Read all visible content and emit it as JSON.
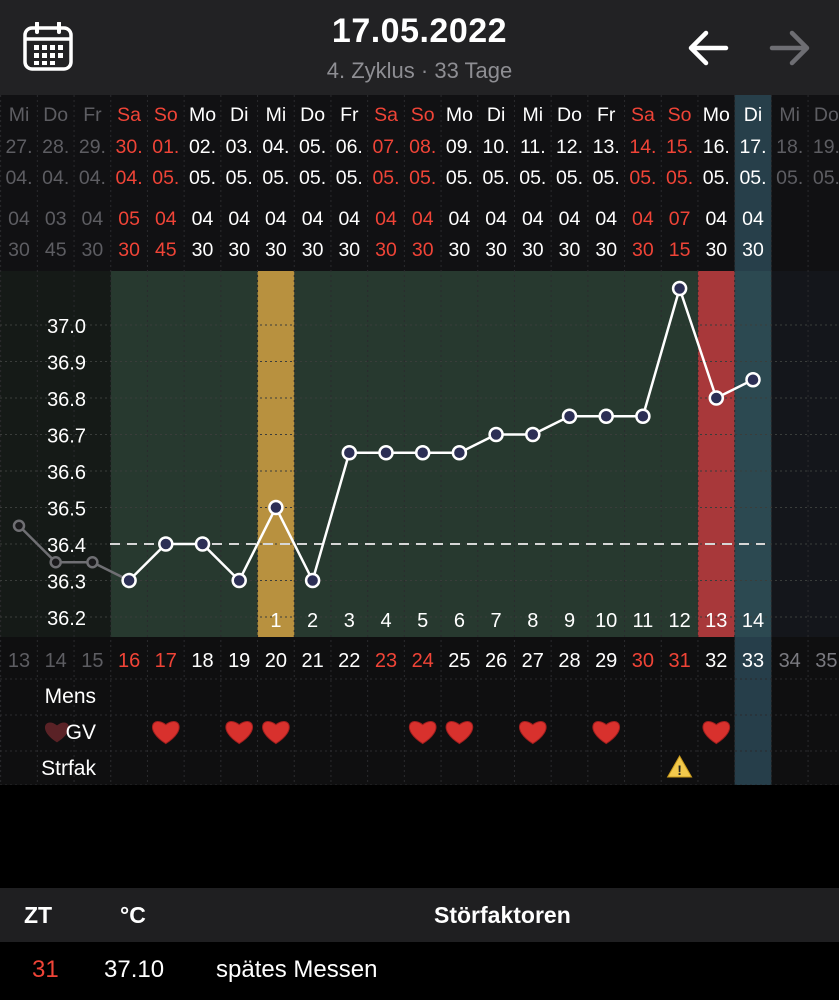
{
  "header": {
    "title": "17.05.2022",
    "subtitle": "4. Zyklus · 33 Tage"
  },
  "colors": {
    "red": "#f04437",
    "green_zone": "#27392f",
    "yellow_band": "#b8913f",
    "red_band": "#a8383a",
    "blue_band": "#2f4f5e",
    "line": "#ffffff"
  },
  "chart_data": {
    "type": "line",
    "ylim": [
      36.1,
      37.15
    ],
    "y_ticks": [
      "37.0",
      "36.9",
      "36.8",
      "36.7",
      "36.6",
      "36.5",
      "36.4",
      "36.3",
      "36.2"
    ],
    "coverline": 36.4,
    "days": [
      {
        "wd": "Mi",
        "d": "27.",
        "m": "04.",
        "h": "04",
        "mi": "30",
        "ct": "13",
        "temp": 36.45,
        "prev": true
      },
      {
        "wd": "Do",
        "d": "28.",
        "m": "04.",
        "h": "03",
        "mi": "45",
        "ct": "14",
        "temp": 36.35,
        "prev": true
      },
      {
        "wd": "Fr",
        "d": "29.",
        "m": "04.",
        "h": "04",
        "mi": "30",
        "ct": "15",
        "temp": 36.35,
        "prev": true
      },
      {
        "wd": "Sa",
        "d": "30.",
        "m": "04.",
        "h": "05",
        "mi": "30",
        "ct": "16",
        "temp": 36.3,
        "weekend": true
      },
      {
        "wd": "So",
        "d": "01.",
        "m": "05.",
        "h": "04",
        "mi": "45",
        "ct": "17",
        "temp": 36.4,
        "weekend": true,
        "gv": true
      },
      {
        "wd": "Mo",
        "d": "02.",
        "m": "05.",
        "h": "04",
        "mi": "30",
        "ct": "18",
        "temp": 36.4
      },
      {
        "wd": "Di",
        "d": "03.",
        "m": "05.",
        "h": "04",
        "mi": "30",
        "ct": "19",
        "temp": 36.3,
        "gv": true
      },
      {
        "wd": "Mi",
        "d": "04.",
        "m": "05.",
        "h": "04",
        "mi": "30",
        "ct": "20",
        "temp": 36.5,
        "gv": true,
        "hnum": "1",
        "band": "yellow"
      },
      {
        "wd": "Do",
        "d": "05.",
        "m": "05.",
        "h": "04",
        "mi": "30",
        "ct": "21",
        "temp": 36.3,
        "hnum": "2"
      },
      {
        "wd": "Fr",
        "d": "06.",
        "m": "05.",
        "h": "04",
        "mi": "30",
        "ct": "22",
        "temp": 36.65,
        "hnum": "3"
      },
      {
        "wd": "Sa",
        "d": "07.",
        "m": "05.",
        "h": "04",
        "mi": "30",
        "ct": "23",
        "temp": 36.65,
        "weekend": true,
        "hnum": "4"
      },
      {
        "wd": "So",
        "d": "08.",
        "m": "05.",
        "h": "04",
        "mi": "30",
        "ct": "24",
        "temp": 36.65,
        "weekend": true,
        "gv": true,
        "hnum": "5"
      },
      {
        "wd": "Mo",
        "d": "09.",
        "m": "05.",
        "h": "04",
        "mi": "30",
        "ct": "25",
        "temp": 36.65,
        "gv": true,
        "hnum": "6"
      },
      {
        "wd": "Di",
        "d": "10.",
        "m": "05.",
        "h": "04",
        "mi": "30",
        "ct": "26",
        "temp": 36.7,
        "hnum": "7"
      },
      {
        "wd": "Mi",
        "d": "11.",
        "m": "05.",
        "h": "04",
        "mi": "30",
        "ct": "27",
        "temp": 36.7,
        "gv": true,
        "hnum": "8"
      },
      {
        "wd": "Do",
        "d": "12.",
        "m": "05.",
        "h": "04",
        "mi": "30",
        "ct": "28",
        "temp": 36.75,
        "hnum": "9"
      },
      {
        "wd": "Fr",
        "d": "13.",
        "m": "05.",
        "h": "04",
        "mi": "30",
        "ct": "29",
        "temp": 36.75,
        "gv": true,
        "hnum": "10"
      },
      {
        "wd": "Sa",
        "d": "14.",
        "m": "05.",
        "h": "04",
        "mi": "30",
        "ct": "30",
        "temp": 36.75,
        "weekend": true,
        "hnum": "11"
      },
      {
        "wd": "So",
        "d": "15.",
        "m": "05.",
        "h": "07",
        "mi": "15",
        "ct": "31",
        "temp": 37.1,
        "weekend": true,
        "hnum": "12"
      },
      {
        "wd": "Mo",
        "d": "16.",
        "m": "05.",
        "h": "04",
        "mi": "30",
        "ct": "32",
        "temp": 36.8,
        "gv": true,
        "warn": true,
        "hnum": "13",
        "band": "red"
      },
      {
        "wd": "Di",
        "d": "17.",
        "m": "05.",
        "h": "04",
        "mi": "30",
        "ct": "33",
        "temp": 36.85,
        "hnum": "14",
        "band": "blue",
        "selected": true
      },
      {
        "wd": "Mi",
        "d": "18.",
        "m": "05.",
        "ct": "34",
        "future": true
      },
      {
        "wd": "Do",
        "d": "19.",
        "m": "05.",
        "ct": "35",
        "future": true
      }
    ]
  },
  "rows": {
    "mens_label": "Mens",
    "gv_label": "GV",
    "strfak_label": "Strfak"
  },
  "table": {
    "col_zt": "ZT",
    "col_temp": "°C",
    "col_stoer": "Störfaktoren",
    "entry": {
      "zt": "31",
      "temp": "37.10",
      "stoer": "spätes Messen"
    }
  }
}
